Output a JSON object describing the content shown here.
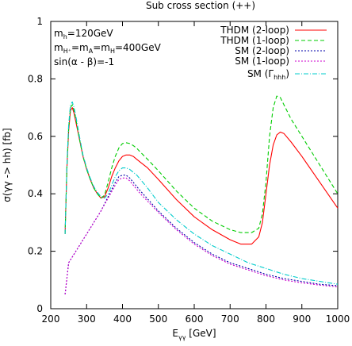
{
  "chart_data": {
    "type": "line",
    "title": "Sub cross section (++)",
    "xlabel": {
      "main": "E",
      "sub": "γγ",
      "rest": " [GeV]"
    },
    "ylabel": "σ(γγ -> hh)  [fb]",
    "xlim": [
      200,
      1000
    ],
    "ylim": [
      0,
      1
    ],
    "x_ticks": [
      200,
      300,
      400,
      500,
      600,
      700,
      800,
      900,
      1000
    ],
    "y_ticks": [
      0,
      0.2,
      0.4,
      0.6,
      0.8,
      1
    ],
    "y_tick_labels": [
      "0",
      "0.2",
      "0.4",
      "0.6",
      "0.8",
      "1"
    ],
    "grid": false,
    "legend_position": "top-right",
    "parameters": [
      {
        "main": "m",
        "sub": "h",
        "rest": "=120GeV"
      },
      {
        "main": "m",
        "sub": "H⁺",
        "rest": "=m",
        "sub2": "A",
        "rest2": "=m",
        "sub3": "H",
        "rest3": "=400GeV"
      },
      {
        "main": "sin(α - β)=-1"
      }
    ],
    "series": [
      {
        "name": "THDM (2-loop)",
        "color": "#ff0000",
        "dash": "solid",
        "x": [
          240,
          245,
          250,
          255,
          260,
          265,
          270,
          280,
          290,
          300,
          310,
          320,
          330,
          340,
          350,
          360,
          370,
          380,
          390,
          400,
          410,
          420,
          430,
          440,
          450,
          470,
          500,
          550,
          600,
          650,
          700,
          730,
          760,
          780,
          790,
          800,
          810,
          820,
          830,
          840,
          850,
          870,
          900,
          950,
          1000
        ],
        "y": [
          0.26,
          0.49,
          0.62,
          0.69,
          0.7,
          0.68,
          0.65,
          0.59,
          0.53,
          0.485,
          0.45,
          0.42,
          0.4,
          0.385,
          0.39,
          0.42,
          0.46,
          0.49,
          0.515,
          0.53,
          0.535,
          0.535,
          0.53,
          0.52,
          0.51,
          0.49,
          0.45,
          0.38,
          0.32,
          0.275,
          0.24,
          0.225,
          0.225,
          0.25,
          0.3,
          0.4,
          0.5,
          0.57,
          0.605,
          0.615,
          0.61,
          0.58,
          0.53,
          0.44,
          0.35
        ]
      },
      {
        "name": "THDM (1-loop)",
        "color": "#00cc00",
        "dash": "dashed",
        "x": [
          240,
          245,
          250,
          255,
          260,
          265,
          270,
          280,
          290,
          300,
          310,
          320,
          330,
          340,
          350,
          360,
          370,
          380,
          390,
          400,
          410,
          420,
          430,
          440,
          450,
          470,
          500,
          550,
          600,
          650,
          700,
          730,
          760,
          780,
          790,
          800,
          810,
          820,
          830,
          840,
          850,
          870,
          900,
          950,
          1000
        ],
        "y": [
          0.26,
          0.49,
          0.63,
          0.7,
          0.71,
          0.69,
          0.66,
          0.59,
          0.53,
          0.485,
          0.45,
          0.42,
          0.4,
          0.385,
          0.395,
          0.44,
          0.49,
          0.53,
          0.56,
          0.575,
          0.578,
          0.575,
          0.568,
          0.558,
          0.545,
          0.52,
          0.48,
          0.41,
          0.35,
          0.305,
          0.275,
          0.265,
          0.265,
          0.28,
          0.33,
          0.44,
          0.6,
          0.7,
          0.74,
          0.735,
          0.71,
          0.66,
          0.6,
          0.5,
          0.4
        ]
      },
      {
        "name": "SM (2-loop)",
        "color": "#0000aa",
        "dash": "dotted",
        "x": [
          240,
          250,
          260,
          270,
          280,
          300,
          320,
          340,
          360,
          380,
          390,
          400,
          410,
          420,
          430,
          450,
          500,
          550,
          600,
          650,
          700,
          750,
          800,
          850,
          900,
          950,
          1000
        ],
        "y": [
          0.05,
          0.16,
          0.18,
          0.2,
          0.22,
          0.26,
          0.3,
          0.34,
          0.39,
          0.44,
          0.46,
          0.465,
          0.465,
          0.455,
          0.44,
          0.41,
          0.34,
          0.28,
          0.23,
          0.19,
          0.16,
          0.14,
          0.12,
          0.105,
          0.095,
          0.085,
          0.08
        ]
      },
      {
        "name": "SM (1-loop)",
        "color": "#cc00cc",
        "dash": "dotted",
        "x": [
          240,
          250,
          260,
          270,
          280,
          300,
          320,
          340,
          360,
          380,
          390,
          400,
          410,
          420,
          430,
          450,
          500,
          550,
          600,
          650,
          700,
          750,
          800,
          850,
          900,
          950,
          1000
        ],
        "y": [
          0.05,
          0.16,
          0.18,
          0.2,
          0.22,
          0.26,
          0.3,
          0.34,
          0.385,
          0.43,
          0.45,
          0.455,
          0.455,
          0.445,
          0.43,
          0.4,
          0.335,
          0.275,
          0.225,
          0.185,
          0.155,
          0.135,
          0.115,
          0.1,
          0.09,
          0.082,
          0.076
        ]
      },
      {
        "name": "SM (Γhhh)",
        "name_parts": {
          "main": "SM (Γ",
          "sub": "hhh",
          "rest": ")"
        },
        "color": "#00cccc",
        "dash": "dashdot",
        "x": [
          240,
          245,
          250,
          255,
          260,
          265,
          270,
          280,
          290,
          300,
          310,
          320,
          330,
          340,
          350,
          360,
          370,
          380,
          390,
          400,
          410,
          420,
          430,
          440,
          450,
          470,
          500,
          550,
          600,
          650,
          700,
          750,
          800,
          850,
          900,
          950,
          1000
        ],
        "y": [
          0.26,
          0.5,
          0.64,
          0.71,
          0.72,
          0.7,
          0.67,
          0.6,
          0.535,
          0.49,
          0.455,
          0.425,
          0.405,
          0.39,
          0.385,
          0.4,
          0.43,
          0.46,
          0.48,
          0.49,
          0.49,
          0.485,
          0.475,
          0.465,
          0.45,
          0.42,
          0.37,
          0.31,
          0.26,
          0.22,
          0.19,
          0.16,
          0.14,
          0.12,
          0.105,
          0.095,
          0.085
        ]
      }
    ]
  }
}
